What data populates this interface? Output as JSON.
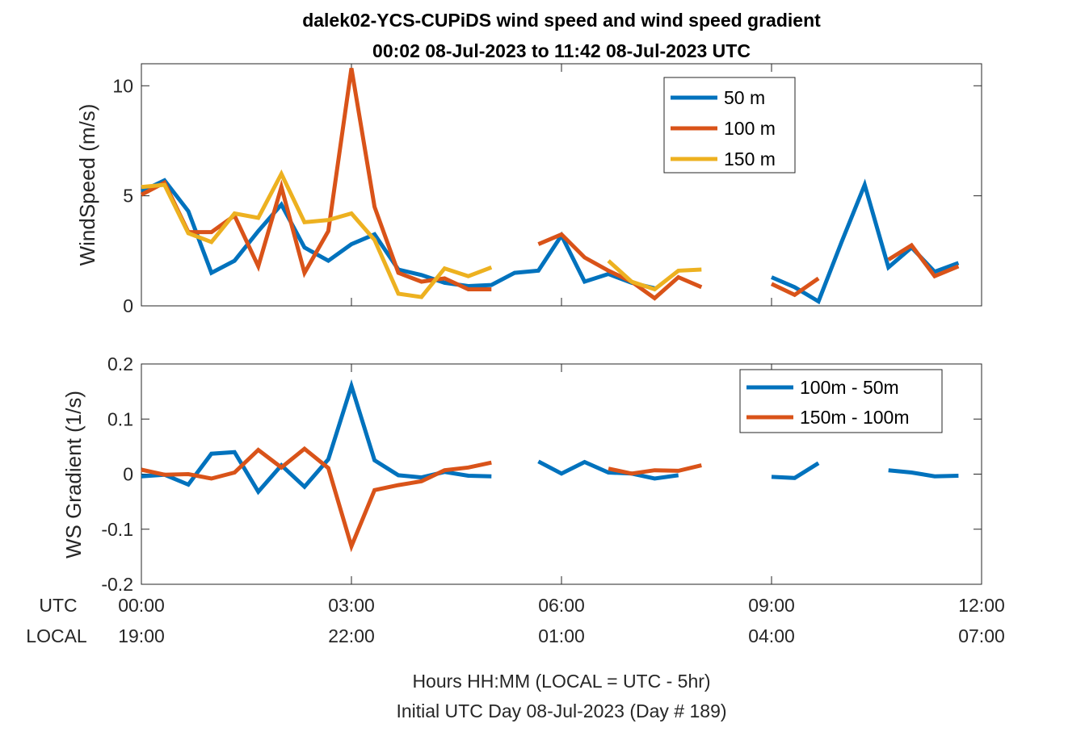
{
  "titles": [
    "dalek02-YCS-CUPiDS  wind speed and wind speed gradient",
    "00:02 08-Jul-2023 to 11:42 08-Jul-2023  UTC"
  ],
  "xaxis": {
    "utc_label": "UTC",
    "local_label": "LOCAL",
    "utc_ticks": [
      "00:00",
      "03:00",
      "06:00",
      "09:00",
      "12:00"
    ],
    "local_ticks": [
      "19:00",
      "22:00",
      "01:00",
      "04:00",
      "07:00"
    ],
    "caption_line1": "Hours HH:MM  (LOCAL = UTC - 5hr)",
    "caption_line2": "Initial UTC Day 08-Jul-2023 (Day # 189)"
  },
  "colors": {
    "s50": "#0072BD",
    "s100": "#D95319",
    "s150": "#EDB120"
  },
  "chart_data": [
    {
      "type": "line",
      "ylabel": "WindSpeed (m/s)",
      "xlim": [
        0,
        12
      ],
      "ylim": [
        0,
        11
      ],
      "yticks": [
        0,
        5,
        10
      ],
      "ytick_labels": [
        "0",
        "5",
        "10"
      ],
      "legend_position": "top-right",
      "series": [
        {
          "name": "50 m",
          "color": "#0072BD",
          "points": [
            [
              0.0,
              5.2
            ],
            [
              0.33,
              5.7
            ],
            [
              0.67,
              4.3
            ],
            [
              1.0,
              1.5
            ],
            [
              1.33,
              2.05
            ],
            [
              1.67,
              3.4
            ],
            [
              2.0,
              4.6
            ],
            [
              2.33,
              2.65
            ],
            [
              2.67,
              2.05
            ],
            [
              3.0,
              2.8
            ],
            [
              3.33,
              3.25
            ],
            [
              3.67,
              1.65
            ],
            [
              4.0,
              1.4
            ],
            [
              4.33,
              1.05
            ],
            [
              4.67,
              0.9
            ],
            [
              5.0,
              0.95
            ],
            [
              5.33,
              1.5
            ],
            [
              5.67,
              1.6
            ],
            [
              6.0,
              3.2
            ],
            [
              6.33,
              1.1
            ],
            [
              6.67,
              1.45
            ],
            [
              7.0,
              1.05
            ],
            [
              7.33,
              0.8
            ],
            null,
            [
              9.0,
              1.3
            ],
            [
              9.33,
              0.85
            ],
            [
              9.67,
              0.2
            ],
            [
              10.0,
              2.9
            ],
            [
              10.33,
              5.5
            ],
            [
              10.67,
              1.75
            ],
            [
              11.0,
              2.65
            ],
            [
              11.33,
              1.55
            ],
            [
              11.67,
              1.95
            ]
          ]
        },
        {
          "name": "100 m",
          "color": "#D95319",
          "points": [
            [
              0.0,
              5.05
            ],
            [
              0.33,
              5.6
            ],
            [
              0.67,
              3.35
            ],
            [
              1.0,
              3.35
            ],
            [
              1.33,
              4.1
            ],
            [
              1.67,
              1.8
            ],
            [
              2.0,
              5.4
            ],
            [
              2.33,
              1.5
            ],
            [
              2.67,
              3.4
            ],
            [
              3.0,
              10.8
            ],
            [
              3.33,
              4.5
            ],
            [
              3.67,
              1.5
            ],
            [
              4.0,
              1.1
            ],
            [
              4.33,
              1.25
            ],
            [
              4.67,
              0.75
            ],
            [
              5.0,
              0.75
            ],
            null,
            [
              5.67,
              2.8
            ],
            [
              6.0,
              3.25
            ],
            [
              6.33,
              2.2
            ],
            [
              6.67,
              1.6
            ],
            [
              7.0,
              1.1
            ],
            [
              7.33,
              0.35
            ],
            [
              7.67,
              1.3
            ],
            [
              8.0,
              0.85
            ],
            null,
            [
              9.0,
              1.0
            ],
            [
              9.33,
              0.5
            ],
            [
              9.67,
              1.25
            ],
            null,
            [
              10.67,
              2.1
            ],
            [
              11.0,
              2.75
            ],
            [
              11.33,
              1.35
            ],
            [
              11.67,
              1.8
            ]
          ]
        },
        {
          "name": "150 m",
          "color": "#EDB120",
          "points": [
            [
              0.0,
              5.4
            ],
            [
              0.33,
              5.5
            ],
            [
              0.67,
              3.3
            ],
            [
              1.0,
              2.9
            ],
            [
              1.33,
              4.2
            ],
            [
              1.67,
              4.0
            ],
            [
              2.0,
              6.0
            ],
            [
              2.33,
              3.8
            ],
            [
              2.67,
              3.9
            ],
            [
              3.0,
              4.2
            ],
            [
              3.33,
              3.0
            ],
            [
              3.67,
              0.55
            ],
            [
              4.0,
              0.4
            ],
            [
              4.33,
              1.7
            ],
            [
              4.67,
              1.35
            ],
            [
              5.0,
              1.75
            ],
            null,
            [
              6.67,
              2.05
            ],
            [
              7.0,
              1.1
            ],
            [
              7.33,
              0.75
            ],
            [
              7.67,
              1.6
            ],
            [
              8.0,
              1.65
            ]
          ]
        }
      ]
    },
    {
      "type": "line",
      "ylabel": "WS Gradient (1/s)",
      "xlim": [
        0,
        12
      ],
      "ylim": [
        -0.2,
        0.2
      ],
      "yticks": [
        -0.2,
        -0.1,
        0,
        0.1,
        0.2
      ],
      "ytick_labels": [
        "-0.2",
        "-0.1",
        "0",
        "0.1",
        "0.2"
      ],
      "legend_position": "top-right",
      "series": [
        {
          "name": "100m - 50m",
          "color": "#0072BD",
          "points": [
            [
              0.0,
              -0.004
            ],
            [
              0.33,
              -0.001
            ],
            [
              0.67,
              -0.019
            ],
            [
              1.0,
              0.037
            ],
            [
              1.33,
              0.04
            ],
            [
              1.67,
              -0.032
            ],
            [
              2.0,
              0.016
            ],
            [
              2.33,
              -0.023
            ],
            [
              2.67,
              0.027
            ],
            [
              3.0,
              0.16
            ],
            [
              3.33,
              0.025
            ],
            [
              3.67,
              -0.002
            ],
            [
              4.0,
              -0.006
            ],
            [
              4.33,
              0.004
            ],
            [
              4.67,
              -0.003
            ],
            [
              5.0,
              -0.004
            ],
            null,
            [
              5.67,
              0.023
            ],
            [
              6.0,
              0.001
            ],
            [
              6.33,
              0.022
            ],
            [
              6.67,
              0.003
            ],
            [
              7.0,
              0.001
            ],
            [
              7.33,
              -0.008
            ],
            [
              7.67,
              -0.002
            ],
            null,
            [
              9.0,
              -0.005
            ],
            [
              9.33,
              -0.007
            ],
            [
              9.67,
              0.02
            ],
            null,
            [
              10.67,
              0.007
            ],
            [
              11.0,
              0.003
            ],
            [
              11.33,
              -0.004
            ],
            [
              11.67,
              -0.003
            ]
          ]
        },
        {
          "name": "150m - 100m",
          "color": "#D95319",
          "points": [
            [
              0.0,
              0.008
            ],
            [
              0.33,
              -0.001
            ],
            [
              0.67,
              0.0
            ],
            [
              1.0,
              -0.008
            ],
            [
              1.33,
              0.003
            ],
            [
              1.67,
              0.044
            ],
            [
              2.0,
              0.012
            ],
            [
              2.33,
              0.046
            ],
            [
              2.67,
              0.011
            ],
            [
              3.0,
              -0.131
            ],
            [
              3.33,
              -0.029
            ],
            [
              3.67,
              -0.02
            ],
            [
              4.0,
              -0.013
            ],
            [
              4.33,
              0.007
            ],
            [
              4.67,
              0.012
            ],
            [
              5.0,
              0.021
            ],
            null,
            [
              6.67,
              0.01
            ],
            [
              7.0,
              0.001
            ],
            [
              7.33,
              0.007
            ],
            [
              7.67,
              0.006
            ],
            [
              8.0,
              0.016
            ]
          ]
        }
      ]
    }
  ]
}
